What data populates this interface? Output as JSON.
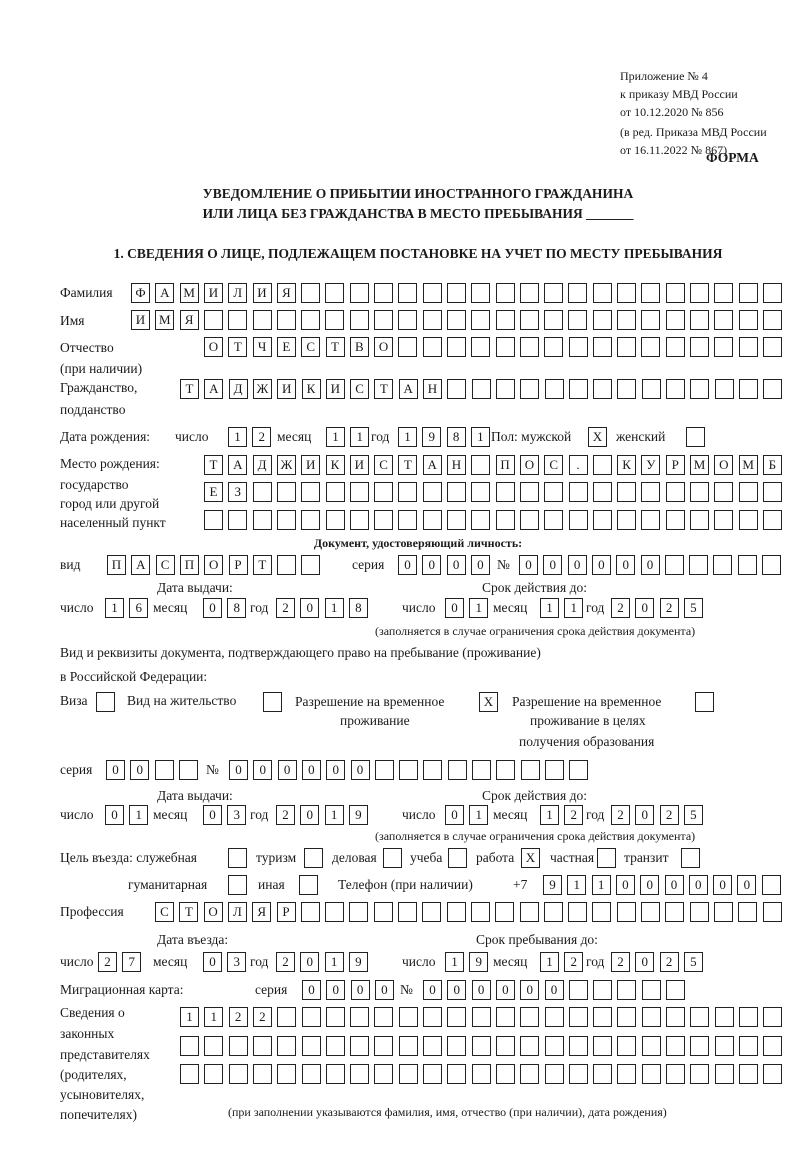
{
  "header": {
    "appendix": [
      "Приложение № 4",
      "к приказу МВД России",
      "от 10.12.2020 № 856"
    ],
    "revision": [
      "(в ред. Приказа МВД России",
      "от 16.11.2022 № 867)"
    ],
    "form_label": "ФОРМА",
    "title": [
      "УВЕДОМЛЕНИЕ О ПРИБЫТИИ ИНОСТРАННОГО ГРАЖДАНИНА",
      "ИЛИ ЛИЦА БЕЗ ГРАЖДАНСТВА В МЕСТО ПРЕБЫВАНИЯ _______"
    ],
    "section1": "1. СВЕДЕНИЯ О ЛИЦЕ, ПОДЛЕЖАЩЕМ ПОСТАНОВКЕ НА УЧЕТ ПО МЕСТУ ПРЕБЫВАНИЯ"
  },
  "labels": {
    "surname": "Фамилия",
    "name": "Имя",
    "patronymic": [
      "Отчество",
      "(при наличии)"
    ],
    "citizenship": [
      "Гражданство,",
      "подданство"
    ],
    "birth_date": "Дата рождения:",
    "day": "число",
    "month": "месяц",
    "year": "год",
    "sex": "Пол: мужской",
    "female": "женский",
    "birth_place": [
      "Место рождения:",
      "государство",
      "город или другой",
      "населенный пункт"
    ],
    "id_doc": "Документ, удостоверяющий личность:",
    "kind": "вид",
    "series": "серия",
    "number": "№",
    "issue_date": "Дата выдачи:",
    "valid_until": "Срок действия до:",
    "valid_note": "(заполняется в случае ограничения срока действия документа)",
    "right_doc": [
      "Вид и реквизиты документа, подтверждающего право на пребывание (проживание)",
      "в Российской Федерации:"
    ],
    "visa": "Виза",
    "residence_permit": "Вид на жительство",
    "temp_permit": [
      "Разрешение на временное",
      "проживание"
    ],
    "temp_permit_edu": [
      "Разрешение на временное",
      "проживание в целях",
      "получения образования"
    ],
    "purpose": "Цель въезда: служебная",
    "tourism": "туризм",
    "business": "деловая",
    "study": "учеба",
    "work": "работа",
    "private": "частная",
    "transit": "транзит",
    "humanitarian": "гуманитарная",
    "other": "иная",
    "phone": "Телефон (при наличии)",
    "phone_prefix": "+7",
    "profession": "Профессия",
    "entry_date": "Дата въезда:",
    "stay_until": "Срок пребывания до:",
    "migration_card": "Миграционная карта:",
    "representatives": [
      "Сведения о",
      "законных",
      "представителях",
      "(родителях,",
      "усыновителях,",
      "попечителях)"
    ],
    "rep_note": "(при заполнении указываются фамилия, имя, отчество (при наличии), дата рождения)"
  },
  "fields": {
    "surname": "ФАМИЛИЯ",
    "name": "ИМЯ",
    "patronymic": "ОТЧЕСТВО",
    "citizenship": "ТАДЖИКИСТАН",
    "birth_day": "12",
    "birth_month": "11",
    "birth_year": "1981",
    "sex_male": "X",
    "sex_female": "",
    "birth_place_1": "ТАДЖИКИСТАН ПОС. КУРМОМБ",
    "birth_place_2": "ЕЗ",
    "birth_place_3": "",
    "doc_kind": "ПАСПОРТ",
    "doc_series": "0000",
    "doc_number": "000000",
    "doc_issue_day": "16",
    "doc_issue_month": "08",
    "doc_issue_year": "2018",
    "doc_valid_day": "01",
    "doc_valid_month": "11",
    "doc_valid_year": "2025",
    "visa": "",
    "residence_permit": "",
    "temp_permit": "X",
    "temp_permit_edu": "",
    "right_series": "00",
    "right_number": "000000",
    "right_issue_day": "01",
    "right_issue_month": "03",
    "right_issue_year": "2019",
    "right_valid_day": "01",
    "right_valid_month": "12",
    "right_valid_year": "2025",
    "purpose_official": "",
    "purpose_tourism": "",
    "purpose_business": "",
    "purpose_study": "",
    "purpose_work": "X",
    "purpose_private": "",
    "purpose_transit": "",
    "purpose_humanitarian": "",
    "purpose_other": "",
    "phone": "911000000",
    "profession": "СТОЛЯР",
    "entry_day": "27",
    "entry_month": "03",
    "entry_year": "2019",
    "stay_day": "19",
    "stay_month": "12",
    "stay_year": "2025",
    "mig_series": "0000",
    "mig_number": "000000",
    "rep_1": "1122",
    "rep_2": "",
    "rep_3": ""
  }
}
